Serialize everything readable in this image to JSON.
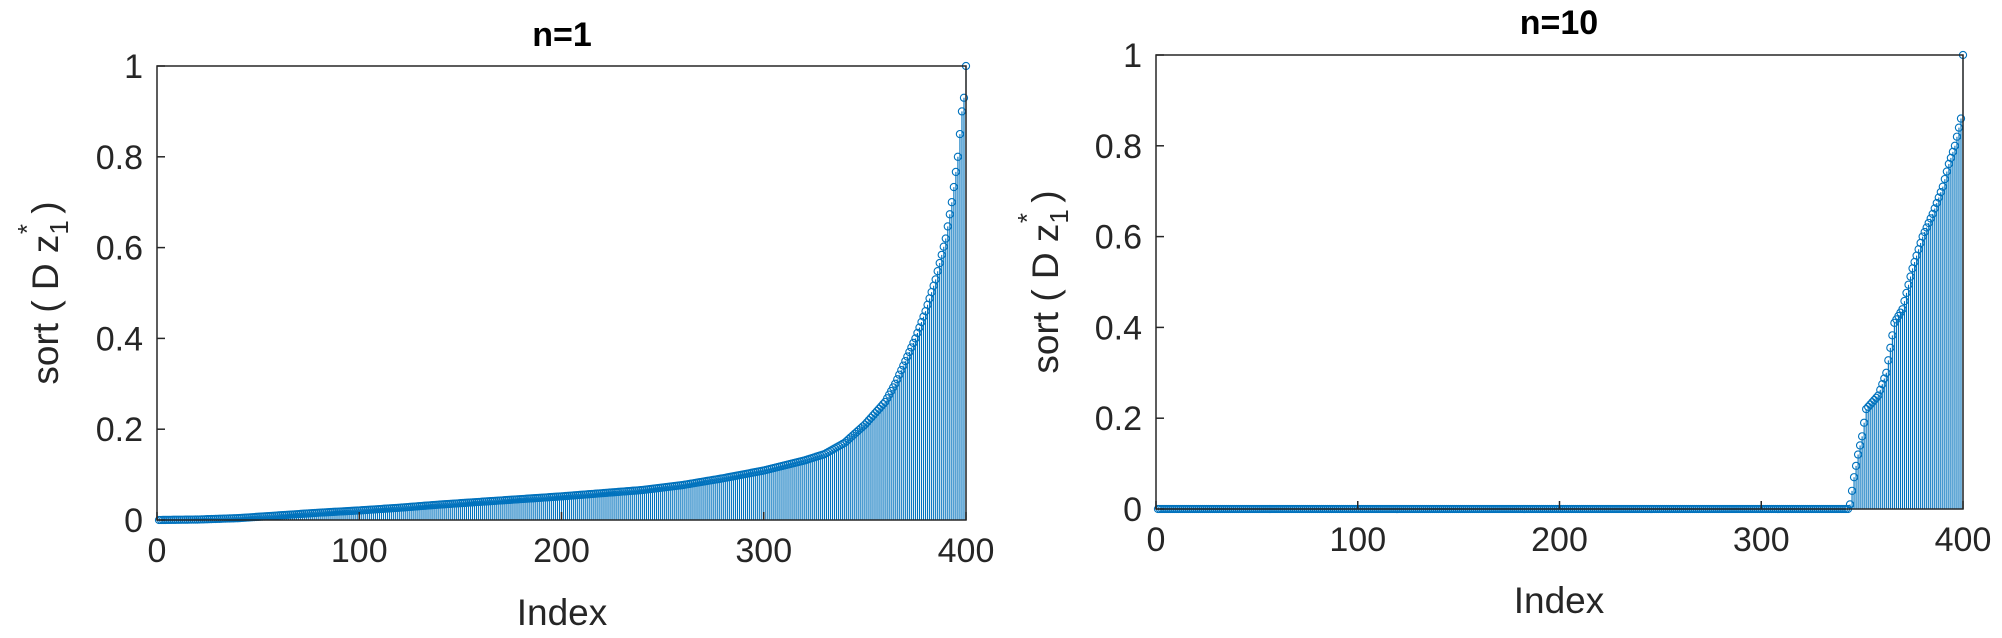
{
  "chart_data": [
    {
      "type": "stem",
      "title": "n=1",
      "xlabel": "Index",
      "ylabel": {
        "base": "sort ( D z",
        "subscript": "1",
        "superscript": "*",
        "close": " )"
      },
      "xlim": [
        0,
        400
      ],
      "ylim": [
        0,
        1
      ],
      "xticks": [
        "0",
        "100",
        "200",
        "300",
        "400"
      ],
      "yticks": [
        "0",
        "0.2",
        "0.4",
        "0.6",
        "0.8",
        "1"
      ],
      "stem_color": "#0072BD",
      "keypoints": {
        "x": [
          1,
          20,
          40,
          60,
          80,
          100,
          120,
          140,
          160,
          180,
          200,
          220,
          240,
          260,
          280,
          300,
          320,
          330,
          340,
          350,
          360,
          365,
          370,
          375,
          380,
          385,
          390,
          393,
          396,
          398,
          399,
          400
        ],
        "y": [
          0.0,
          0.001,
          0.004,
          0.01,
          0.016,
          0.021,
          0.027,
          0.034,
          0.04,
          0.046,
          0.052,
          0.059,
          0.066,
          0.077,
          0.092,
          0.109,
          0.131,
          0.145,
          0.17,
          0.21,
          0.26,
          0.3,
          0.35,
          0.4,
          0.46,
          0.53,
          0.62,
          0.7,
          0.8,
          0.9,
          0.93,
          1.0
        ]
      }
    },
    {
      "type": "stem",
      "title": "n=10",
      "xlabel": "Index",
      "ylabel": {
        "base": "sort ( D z",
        "subscript": "1",
        "superscript": "*",
        "close": " )"
      },
      "xlim": [
        0,
        400
      ],
      "ylim": [
        0,
        1
      ],
      "xticks": [
        "0",
        "100",
        "200",
        "300",
        "400"
      ],
      "yticks": [
        "0",
        "0.2",
        "0.4",
        "0.6",
        "0.8",
        "1"
      ],
      "stem_color": "#0072BD",
      "keypoints": {
        "x": [
          1,
          343,
          344,
          346,
          348,
          350,
          352,
          355,
          358,
          362,
          366,
          370,
          375,
          380,
          385,
          390,
          393,
          396,
          398,
          399,
          400
        ],
        "y": [
          0.0,
          0.0,
          0.01,
          0.07,
          0.12,
          0.16,
          0.22,
          0.235,
          0.25,
          0.3,
          0.41,
          0.44,
          0.53,
          0.6,
          0.65,
          0.71,
          0.76,
          0.8,
          0.84,
          0.86,
          1.0
        ]
      }
    }
  ]
}
